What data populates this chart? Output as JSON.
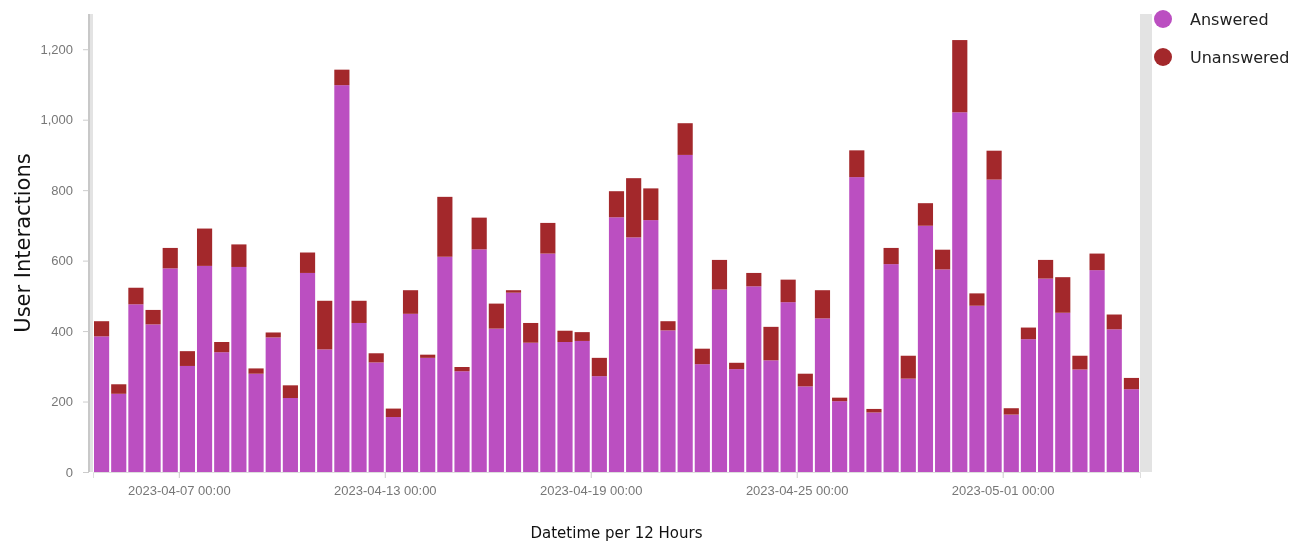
{
  "chart_data": {
    "type": "bar",
    "stacked": true,
    "xlabel": "Datetime per 12 Hours",
    "ylabel": "User Interactions",
    "legend": "top right",
    "grid": false,
    "x": [
      "2023-04-04T18:00",
      "2023-04-05T06:00",
      "2023-04-05T18:00",
      "2023-04-06T06:00",
      "2023-04-06T18:00",
      "2023-04-07T06:00",
      "2023-04-07T18:00",
      "2023-04-08T06:00",
      "2023-04-08T18:00",
      "2023-04-09T06:00",
      "2023-04-09T18:00",
      "2023-04-10T06:00",
      "2023-04-10T18:00",
      "2023-04-11T06:00",
      "2023-04-11T18:00",
      "2023-04-12T06:00",
      "2023-04-12T18:00",
      "2023-04-13T06:00",
      "2023-04-13T18:00",
      "2023-04-14T06:00",
      "2023-04-14T18:00",
      "2023-04-15T06:00",
      "2023-04-15T18:00",
      "2023-04-16T06:00",
      "2023-04-16T18:00",
      "2023-04-17T06:00",
      "2023-04-17T18:00",
      "2023-04-18T06:00",
      "2023-04-18T18:00",
      "2023-04-19T06:00",
      "2023-04-19T18:00",
      "2023-04-20T06:00",
      "2023-04-20T18:00",
      "2023-04-21T06:00",
      "2023-04-21T18:00",
      "2023-04-22T06:00",
      "2023-04-22T18:00",
      "2023-04-23T06:00",
      "2023-04-23T18:00",
      "2023-04-24T06:00",
      "2023-04-24T18:00",
      "2023-04-25T06:00",
      "2023-04-25T18:00",
      "2023-04-26T06:00",
      "2023-04-26T18:00",
      "2023-04-27T06:00",
      "2023-04-27T18:00",
      "2023-04-28T06:00",
      "2023-04-28T18:00",
      "2023-04-29T06:00",
      "2023-04-29T18:00",
      "2023-04-30T06:00",
      "2023-04-30T18:00",
      "2023-05-01T06:00",
      "2023-05-01T18:00",
      "2023-05-02T06:00",
      "2023-05-02T18:00",
      "2023-05-03T06:00",
      "2023-05-03T18:00",
      "2023-05-04T06:00",
      "2023-05-04T18:00"
    ],
    "xlim": [
      "2023-04-04T12:00",
      "2023-05-05T00:00"
    ],
    "xticks": [
      {
        "value": "2023-04-07T00:00",
        "label": "2023-04-07 00:00"
      },
      {
        "value": "2023-04-13T00:00",
        "label": "2023-04-13 00:00"
      },
      {
        "value": "2023-04-19T00:00",
        "label": "2023-04-19 00:00"
      },
      {
        "value": "2023-04-25T00:00",
        "label": "2023-04-25 00:00"
      },
      {
        "value": "2023-05-01T00:00",
        "label": "2023-05-01 00:00"
      }
    ],
    "ylim": [
      0,
      1300
    ],
    "yticks": [
      0,
      200,
      400,
      600,
      800,
      {
        "value": 1000,
        "label": "1,000"
      },
      {
        "value": 1200,
        "label": "1,200"
      }
    ],
    "series": [
      {
        "name": "Answered",
        "color": "#bb4fc1",
        "values": [
          385,
          222,
          476,
          419,
          578,
          301,
          585,
          340,
          582,
          279,
          382,
          210,
          565,
          348,
          1098,
          423,
          311,
          156,
          449,
          324,
          611,
          286,
          632,
          407,
          509,
          367,
          620,
          369,
          372,
          272,
          723,
          666,
          715,
          402,
          900,
          306,
          518,
          292,
          527,
          317,
          482,
          243,
          436,
          201,
          837,
          169,
          590,
          265,
          699,
          575,
          1021,
          472,
          830,
          163,
          377,
          549,
          452,
          291,
          573,
          405,
          235
        ]
      },
      {
        "name": "Unanswered",
        "color": "#a3282b",
        "values": [
          43,
          27,
          47,
          41,
          58,
          42,
          106,
          29,
          64,
          15,
          14,
          36,
          58,
          138,
          44,
          63,
          26,
          24,
          67,
          9,
          170,
          12,
          90,
          71,
          7,
          56,
          87,
          32,
          25,
          52,
          74,
          168,
          90,
          26,
          90,
          44,
          84,
          18,
          38,
          95,
          64,
          36,
          80,
          10,
          76,
          10,
          46,
          65,
          64,
          56,
          205,
          35,
          82,
          18,
          33,
          53,
          101,
          39,
          47,
          42,
          32
        ]
      }
    ]
  }
}
